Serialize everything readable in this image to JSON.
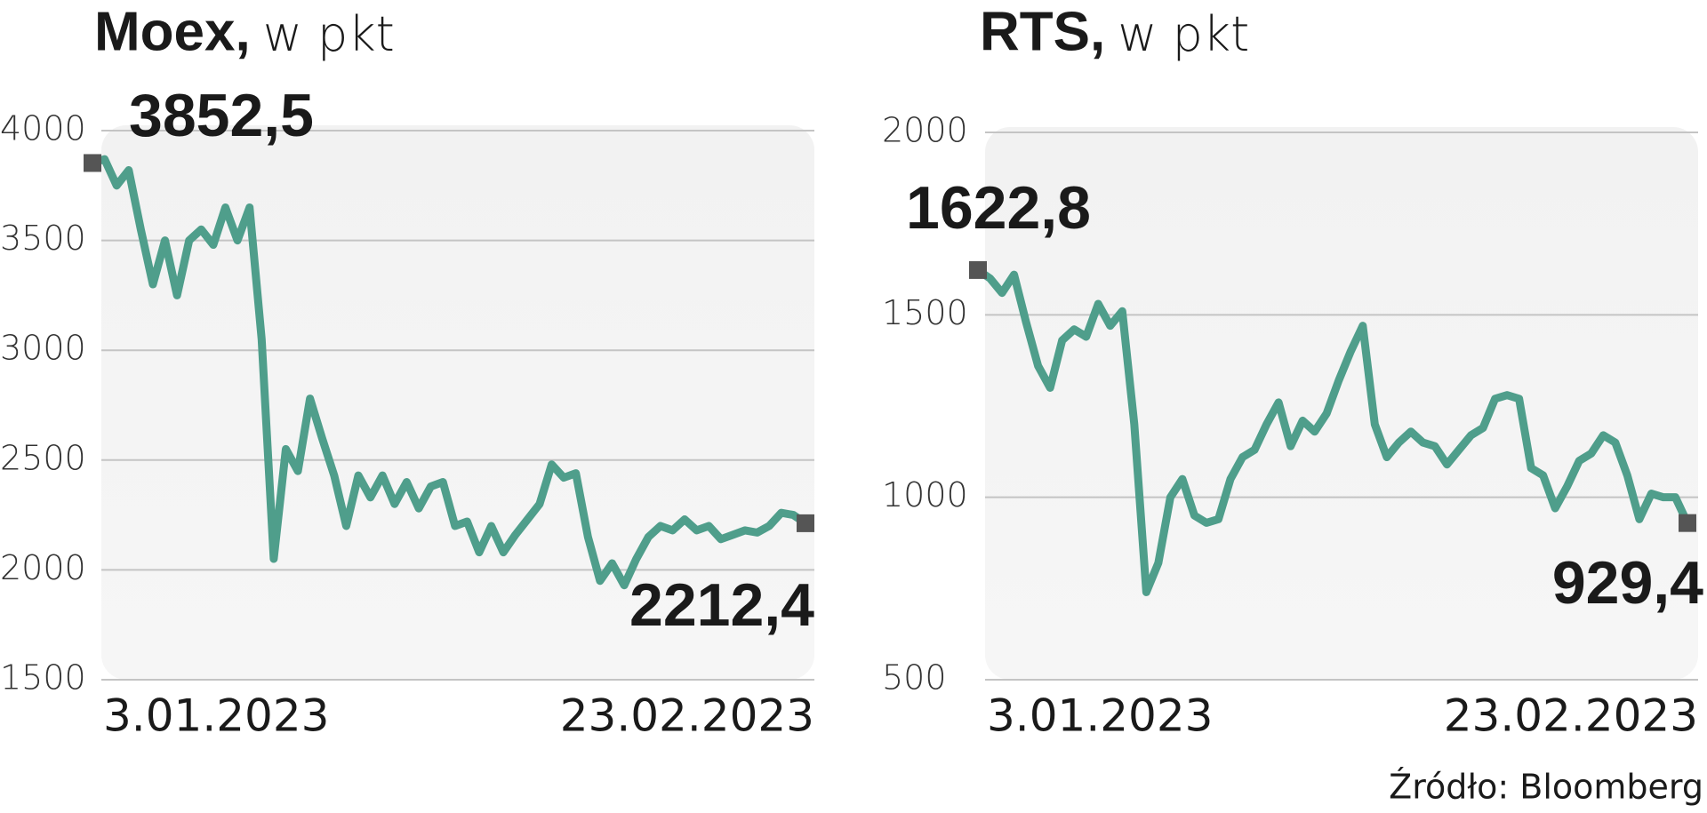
{
  "chart_data": [
    {
      "type": "line",
      "title": "Moex,",
      "y_label": "w pkt",
      "categories": [
        "3.01.2023",
        null,
        null,
        null,
        null,
        null,
        null,
        null,
        null,
        null,
        null,
        null,
        null,
        null,
        null,
        null,
        null,
        null,
        null,
        null,
        null,
        null,
        null,
        null,
        null,
        null,
        null,
        null,
        null,
        null,
        null,
        null,
        null,
        null,
        null,
        null,
        null,
        null,
        null,
        null,
        null,
        null,
        null,
        null,
        null,
        null,
        null,
        null,
        null,
        null,
        null,
        null,
        null,
        null,
        null,
        null,
        null,
        null,
        null,
        "23.02.2023"
      ],
      "series": [
        {
          "name": "Moex",
          "color": "#4f9e8b",
          "values": [
            3852.5,
            3870,
            3750,
            3820,
            3550,
            3300,
            3500,
            3250,
            3500,
            3550,
            3480,
            3650,
            3500,
            3650,
            3050,
            2050,
            2550,
            2450,
            2780,
            2600,
            2430,
            2200,
            2430,
            2330,
            2430,
            2300,
            2400,
            2280,
            2380,
            2400,
            2200,
            2220,
            2080,
            2200,
            2080,
            2160,
            2230,
            2300,
            2480,
            2420,
            2440,
            2150,
            1950,
            2030,
            1930,
            2050,
            2150,
            2200,
            2180,
            2230,
            2180,
            2200,
            2140,
            2160,
            2180,
            2170,
            2200,
            2260,
            2250,
            2212.4
          ],
          "value_labels": [
            "3852,5",
            null,
            null,
            null,
            null,
            null,
            null,
            null,
            null,
            null,
            null,
            null,
            null,
            null,
            null,
            null,
            null,
            null,
            null,
            null,
            null,
            null,
            null,
            null,
            null,
            null,
            null,
            null,
            null,
            null,
            null,
            null,
            null,
            null,
            null,
            null,
            null,
            null,
            null,
            null,
            null,
            null,
            null,
            null,
            null,
            null,
            null,
            null,
            null,
            null,
            null,
            null,
            null,
            null,
            null,
            null,
            null,
            null,
            null,
            "2212,4"
          ]
        }
      ],
      "ylim": [
        1500,
        4000
      ],
      "yticks": [
        1500,
        2000,
        2500,
        3000,
        3500,
        4000
      ],
      "grid": true
    },
    {
      "type": "line",
      "title": "RTS,",
      "y_label": "w pkt",
      "categories": [
        "3.01.2023",
        null,
        null,
        null,
        null,
        null,
        null,
        null,
        null,
        null,
        null,
        null,
        null,
        null,
        null,
        null,
        null,
        null,
        null,
        null,
        null,
        null,
        null,
        null,
        null,
        null,
        null,
        null,
        null,
        null,
        null,
        null,
        null,
        null,
        null,
        null,
        null,
        null,
        null,
        null,
        null,
        null,
        null,
        null,
        null,
        null,
        null,
        null,
        null,
        null,
        null,
        null,
        null,
        null,
        null,
        null,
        null,
        null,
        null,
        "23.02.2023"
      ],
      "series": [
        {
          "name": "RTS",
          "color": "#4f9e8b",
          "values": [
            1622.8,
            1600,
            1560,
            1610,
            1480,
            1360,
            1300,
            1430,
            1460,
            1440,
            1530,
            1470,
            1510,
            1200,
            740,
            820,
            1000,
            1050,
            950,
            930,
            940,
            1050,
            1110,
            1130,
            1200,
            1260,
            1140,
            1210,
            1180,
            1230,
            1320,
            1400,
            1470,
            1200,
            1110,
            1150,
            1180,
            1150,
            1140,
            1090,
            1130,
            1170,
            1190,
            1270,
            1280,
            1270,
            1080,
            1060,
            970,
            1030,
            1100,
            1120,
            1170,
            1150,
            1060,
            940,
            1010,
            1000,
            1000,
            929.4
          ],
          "value_labels": [
            "1622,8",
            null,
            null,
            null,
            null,
            null,
            null,
            null,
            null,
            null,
            null,
            null,
            null,
            null,
            null,
            null,
            null,
            null,
            null,
            null,
            null,
            null,
            null,
            null,
            null,
            null,
            null,
            null,
            null,
            null,
            null,
            null,
            null,
            null,
            null,
            null,
            null,
            null,
            null,
            null,
            null,
            null,
            null,
            null,
            null,
            null,
            null,
            null,
            null,
            null,
            null,
            null,
            null,
            null,
            null,
            null,
            null,
            null,
            null,
            "929,4"
          ]
        }
      ],
      "ylim": [
        500,
        2000
      ],
      "yticks": [
        500,
        1000,
        1500,
        2000
      ],
      "grid": true
    }
  ],
  "source": "Źródło: Bloomberg"
}
